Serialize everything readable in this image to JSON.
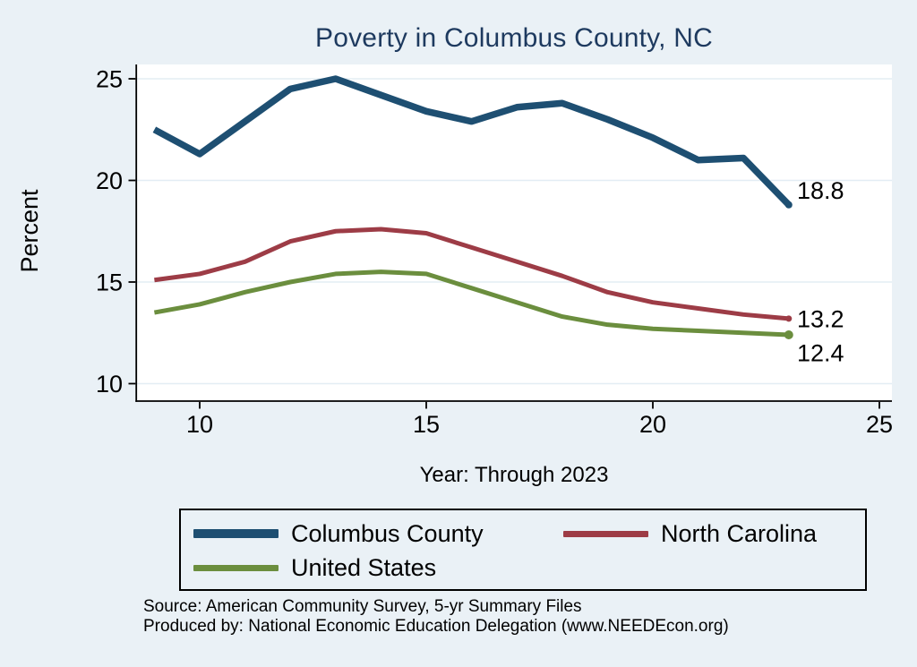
{
  "chart_data": {
    "type": "line",
    "title": "Poverty in Columbus County, NC",
    "xlabel": "Year: Through 2023",
    "ylabel": "Percent",
    "grid": "horizontal-only",
    "legend_position": "bottom-box",
    "x": [
      9,
      10,
      11,
      12,
      13,
      14,
      15,
      16,
      17,
      18,
      19,
      20,
      21,
      22,
      23
    ],
    "x_ticks": [
      10,
      15,
      20,
      25
    ],
    "y_ticks": [
      10,
      15,
      20,
      25
    ],
    "xlim": [
      8.6,
      25.3
    ],
    "ylim": [
      9.1,
      25.7
    ],
    "series": [
      {
        "name": "Columbus County",
        "color": "#1e4f72",
        "line_width": 7.5,
        "end_label": "18.8",
        "values": [
          22.5,
          21.3,
          22.9,
          24.5,
          25.0,
          24.2,
          23.4,
          22.9,
          23.6,
          23.8,
          23.0,
          22.1,
          21.0,
          21.1,
          18.8
        ]
      },
      {
        "name": "North Carolina",
        "color": "#9d3c46",
        "line_width": 5,
        "end_label": "13.2",
        "values": [
          15.1,
          15.4,
          16.0,
          17.0,
          17.5,
          17.6,
          17.4,
          16.7,
          16.0,
          15.3,
          14.5,
          14.0,
          13.7,
          13.4,
          13.2
        ]
      },
      {
        "name": "United States",
        "color": "#6b8e3e",
        "line_width": 5,
        "end_label": "12.4",
        "values": [
          13.5,
          13.9,
          14.5,
          15.0,
          15.4,
          15.5,
          15.4,
          14.7,
          14.0,
          13.3,
          12.9,
          12.7,
          12.6,
          12.5,
          12.4
        ]
      }
    ]
  },
  "footer": {
    "source": "Source: American Community Survey, 5-yr Summary Files",
    "produced_by": "Produced by: National Economic Education Delegation (www.NEEDEcon.org)"
  },
  "style": {
    "background": "#eaf1f6",
    "plot_background": "#ffffff",
    "grid_color": "#e3edf4",
    "axis_color": "#000000",
    "title_color": "#1e3a5f",
    "text_color": "#000000"
  }
}
